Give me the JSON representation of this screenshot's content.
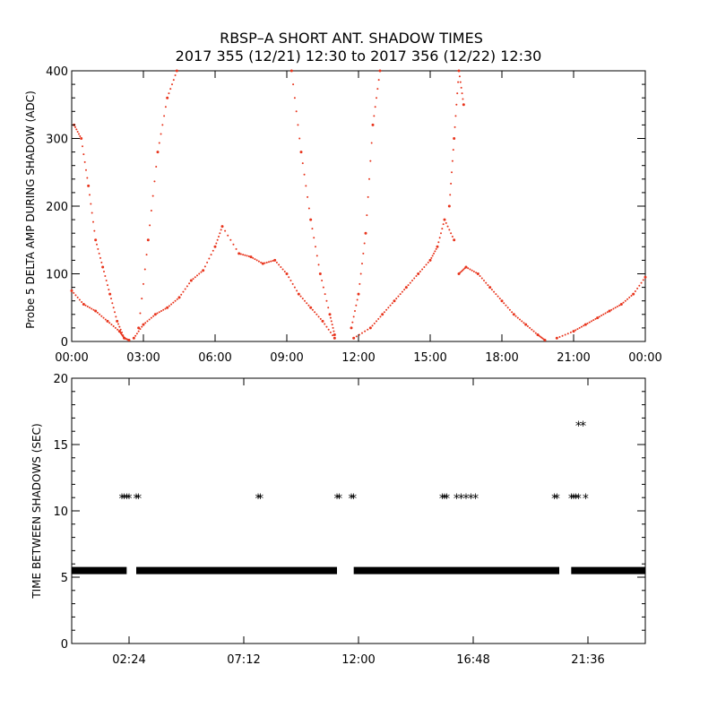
{
  "page": {
    "title_line1": "RBSP–A SHORT ANT. SHADOW TIMES",
    "title_line2": "2017 355 (12/21) 12:30 to 2017 356 (12/22) 12:30"
  },
  "chart_data": [
    {
      "type": "scatter",
      "ylabel": "Probe 5 DELTA AMP DURING SHADOW (ADC)",
      "xlabel": "",
      "x_unit": "hours",
      "xlim": [
        0,
        24
      ],
      "ylim": [
        0,
        400
      ],
      "x_ticks": [
        0,
        3,
        6,
        9,
        12,
        15,
        18,
        21,
        24
      ],
      "x_tick_labels": [
        "00:00",
        "03:00",
        "06:00",
        "09:00",
        "12:00",
        "15:00",
        "18:00",
        "21:00",
        "00:00"
      ],
      "y_ticks": [
        0,
        100,
        200,
        300,
        400
      ],
      "y_tick_labels": [
        "0",
        "100",
        "200",
        "300",
        "400"
      ],
      "color": "#e8341c",
      "marker": "dot",
      "series": [
        {
          "x": [
            0.0,
            0.5,
            1.0,
            1.5,
            2.0,
            2.2,
            2.4
          ],
          "y": [
            75,
            55,
            45,
            30,
            15,
            5,
            2
          ]
        },
        {
          "x": [
            0.1,
            0.4,
            0.7,
            1.0,
            1.3,
            1.6,
            1.9,
            2.2
          ],
          "y": [
            320,
            300,
            230,
            150,
            110,
            70,
            30,
            5
          ]
        },
        {
          "x": [
            2.6,
            3.0,
            3.5,
            4.0,
            4.5,
            5.0,
            5.5,
            6.0,
            6.3,
            7.0,
            7.5,
            8.0,
            8.5,
            9.0,
            9.5,
            10.0,
            10.5,
            11.0
          ],
          "y": [
            5,
            25,
            40,
            50,
            65,
            90,
            105,
            140,
            170,
            130,
            125,
            115,
            120,
            100,
            70,
            50,
            30,
            5
          ]
        },
        {
          "x": [
            2.8,
            3.2,
            3.6,
            4.0,
            4.4
          ],
          "y": [
            20,
            150,
            280,
            360,
            400
          ]
        },
        {
          "x": [
            9.2,
            9.6,
            10.0,
            10.4,
            10.8,
            11.0
          ],
          "y": [
            400,
            280,
            180,
            100,
            40,
            10
          ]
        },
        {
          "x": [
            11.7,
            12.0,
            12.3,
            12.6,
            12.9
          ],
          "y": [
            20,
            70,
            160,
            320,
            400
          ]
        },
        {
          "x": [
            11.8,
            12.5,
            13.0,
            13.5,
            14.0,
            14.5,
            15.0,
            15.3,
            15.6,
            16.0
          ],
          "y": [
            5,
            20,
            40,
            60,
            80,
            100,
            120,
            140,
            180,
            150
          ]
        },
        {
          "x": [
            15.8,
            16.0,
            16.2,
            16.4
          ],
          "y": [
            200,
            300,
            400,
            350
          ]
        },
        {
          "x": [
            16.2,
            16.5,
            17.0,
            17.5,
            18.0,
            18.5,
            19.0,
            19.5,
            19.8
          ],
          "y": [
            100,
            110,
            100,
            80,
            60,
            40,
            25,
            10,
            2
          ]
        },
        {
          "x": [
            20.3,
            21.0,
            21.5,
            22.0,
            22.5,
            23.0,
            23.5,
            24.0
          ],
          "y": [
            5,
            15,
            25,
            35,
            45,
            55,
            70,
            95
          ]
        }
      ]
    },
    {
      "type": "scatter",
      "ylabel": "TIME BETWEEN SHADOWS (SEC)",
      "xlabel": "",
      "x_unit": "hours",
      "xlim": [
        0,
        24
      ],
      "ylim": [
        0,
        20
      ],
      "x_ticks": [
        2.4,
        7.2,
        12.0,
        16.8,
        21.6
      ],
      "x_tick_labels": [
        "02:24",
        "07:12",
        "12:00",
        "16:48",
        "21:36"
      ],
      "y_ticks": [
        0,
        5,
        10,
        15,
        20
      ],
      "y_tick_labels": [
        "0",
        "5",
        "10",
        "15",
        "20"
      ],
      "color": "#000000",
      "marker": "asterisk",
      "series": [
        {
          "x_ranges": [
            [
              0,
              2.3
            ],
            [
              2.7,
              11.1
            ],
            [
              11.8,
              20.4
            ],
            [
              20.9,
              24
            ]
          ],
          "y": 5.5
        },
        {
          "x": [
            2.1,
            2.2,
            2.3,
            2.4,
            2.7,
            2.8,
            7.8,
            7.9,
            11.1,
            11.2,
            11.7,
            11.8,
            15.5,
            15.6,
            15.7,
            16.1,
            16.3,
            16.5,
            16.7,
            16.9,
            20.2,
            20.3,
            20.9,
            21.0,
            21.1,
            21.2,
            21.5
          ],
          "y": [
            11,
            11,
            11,
            11,
            11,
            11,
            11,
            11,
            11,
            11,
            11,
            11,
            11,
            11,
            11,
            11,
            11,
            11,
            11,
            11,
            11,
            11,
            11,
            11,
            11,
            11,
            11
          ]
        },
        {
          "x": [
            21.2,
            21.4
          ],
          "y": [
            16.5,
            16.5
          ]
        }
      ]
    }
  ]
}
